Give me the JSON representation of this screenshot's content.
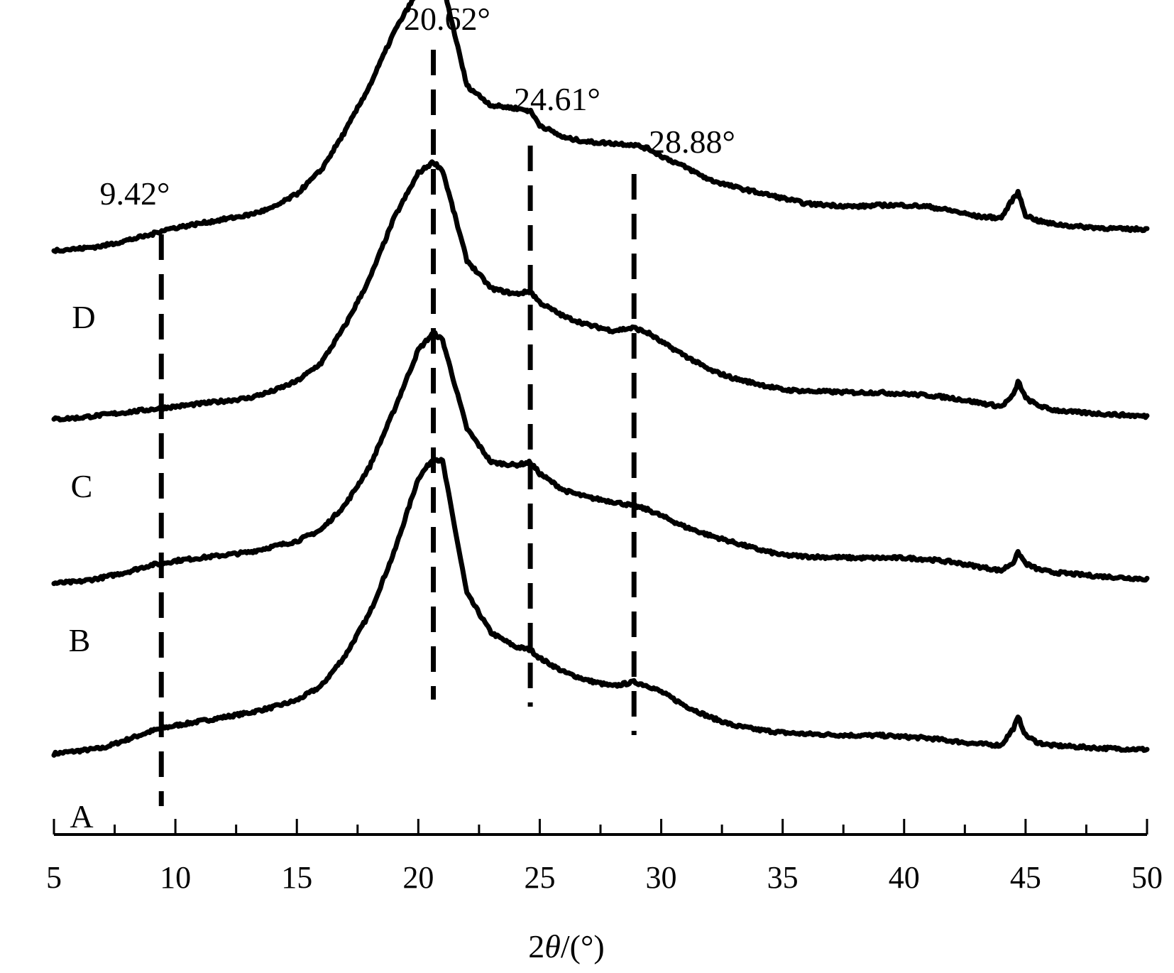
{
  "chart_data": {
    "type": "line",
    "xlabel_main": "2",
    "xlabel_theta": "θ",
    "xlabel_unit": "/(°)",
    "xlim": [
      5,
      50
    ],
    "xticks": [
      5,
      10,
      15,
      20,
      25,
      30,
      35,
      40,
      45,
      50
    ],
    "minor_tick_step": 2.5,
    "y_axis_shown": false,
    "grid": false,
    "series": [
      {
        "name": "A",
        "x": [
          5,
          6,
          7,
          8,
          9,
          9.42,
          10,
          11,
          12,
          13,
          14,
          15,
          16,
          17,
          18,
          19,
          20,
          20.62,
          21,
          22,
          23,
          24,
          24.61,
          25,
          26,
          27,
          28,
          28.88,
          29.5,
          30,
          31,
          32,
          33,
          34,
          35,
          36,
          37,
          38,
          39,
          40,
          41,
          42,
          43,
          44,
          44.5,
          44.7,
          45,
          45.5,
          46,
          47,
          48,
          49,
          50
        ],
        "y": [
          12,
          14,
          16,
          22,
          28,
          30,
          32,
          35,
          38,
          41,
          45,
          50,
          60,
          82,
          112,
          155,
          208,
          222,
          220,
          126,
          98,
          88,
          86,
          80,
          70,
          64,
          60,
          63,
          60,
          56,
          46,
          38,
          32,
          29,
          27,
          26,
          25.5,
          25,
          25,
          24,
          23,
          21,
          19,
          18,
          30,
          38,
          25,
          20,
          18,
          17,
          16,
          15.5,
          15
        ]
      },
      {
        "name": "B",
        "x": [
          5,
          6,
          7,
          8,
          9,
          9.42,
          10,
          11,
          12,
          13,
          14,
          15,
          16,
          17,
          18,
          19,
          20,
          20.62,
          21,
          22,
          23,
          24,
          24.61,
          25,
          26,
          27,
          28,
          28.88,
          29.5,
          30,
          31,
          32,
          33,
          34,
          35,
          36,
          37,
          38,
          39,
          40,
          41,
          42,
          43,
          44,
          44.5,
          44.7,
          45,
          45.5,
          46,
          47,
          48,
          49,
          50
        ],
        "y": [
          12,
          13,
          16,
          20,
          25,
          26,
          28,
          30,
          32,
          34,
          38,
          42,
          50,
          68,
          95,
          135,
          178,
          190,
          185,
          122,
          98,
          96,
          98,
          90,
          78,
          73,
          70,
          67,
          64,
          60,
          52,
          46,
          41,
          36,
          32,
          31,
          30.5,
          30,
          30,
          30,
          29,
          27,
          24,
          21,
          27,
          34,
          26,
          22,
          20,
          18.5,
          17,
          16,
          15
        ]
      },
      {
        "name": "C",
        "x": [
          5,
          6,
          7,
          8,
          9,
          9.42,
          10,
          11,
          12,
          13,
          14,
          15,
          16,
          17,
          18,
          19,
          20,
          20.62,
          21,
          22,
          23,
          24,
          24.61,
          25,
          26,
          27,
          28,
          28.88,
          29.5,
          30,
          31,
          32,
          33,
          34,
          35,
          36,
          37,
          38,
          39,
          40,
          41,
          42,
          43,
          44,
          44.5,
          44.7,
          45,
          45.5,
          46,
          47,
          48,
          49,
          50
        ],
        "y": [
          15,
          16,
          18,
          20,
          22,
          23,
          24,
          26,
          28,
          30,
          35,
          42,
          55,
          82,
          115,
          158,
          190,
          198,
          192,
          128,
          108,
          104,
          106,
          98,
          88,
          82,
          78,
          80,
          76,
          70,
          60,
          50,
          44,
          40,
          36,
          35,
          34.5,
          34,
          34,
          33,
          32,
          30,
          27,
          24,
          32,
          42,
          30,
          25,
          22,
          20,
          19,
          18,
          17
        ]
      },
      {
        "name": "D",
        "x": [
          5,
          6,
          7,
          8,
          9,
          9.42,
          10,
          11,
          12,
          13,
          14,
          15,
          16,
          17,
          18,
          19,
          20,
          20.62,
          21,
          22,
          23,
          24,
          24.61,
          25,
          26,
          27,
          28,
          28.88,
          29.5,
          30,
          31,
          32,
          33,
          34,
          35,
          36,
          37,
          38,
          39,
          40,
          41,
          42,
          43,
          44,
          44.5,
          44.7,
          45,
          45.5,
          46,
          47,
          48,
          49,
          50
        ],
        "y": [
          15,
          16,
          18,
          22,
          26,
          29,
          31,
          34,
          37,
          40,
          45,
          55,
          72,
          100,
          132,
          170,
          200,
          210,
          205,
          132,
          118,
          116,
          114,
          104,
          95,
          92,
          91,
          90,
          87,
          82,
          74,
          65,
          60,
          56,
          52,
          48,
          47,
          46,
          47,
          47,
          46,
          43,
          39,
          38,
          52,
          56,
          40,
          36,
          34,
          32,
          31,
          30,
          30
        ]
      }
    ],
    "reference_lines": [
      {
        "x": 9.42,
        "label": "9.42°"
      },
      {
        "x": 20.62,
        "label": "20.62°"
      },
      {
        "x": 24.61,
        "label": "24.61°"
      },
      {
        "x": 28.88,
        "label": "28.88°"
      }
    ]
  }
}
